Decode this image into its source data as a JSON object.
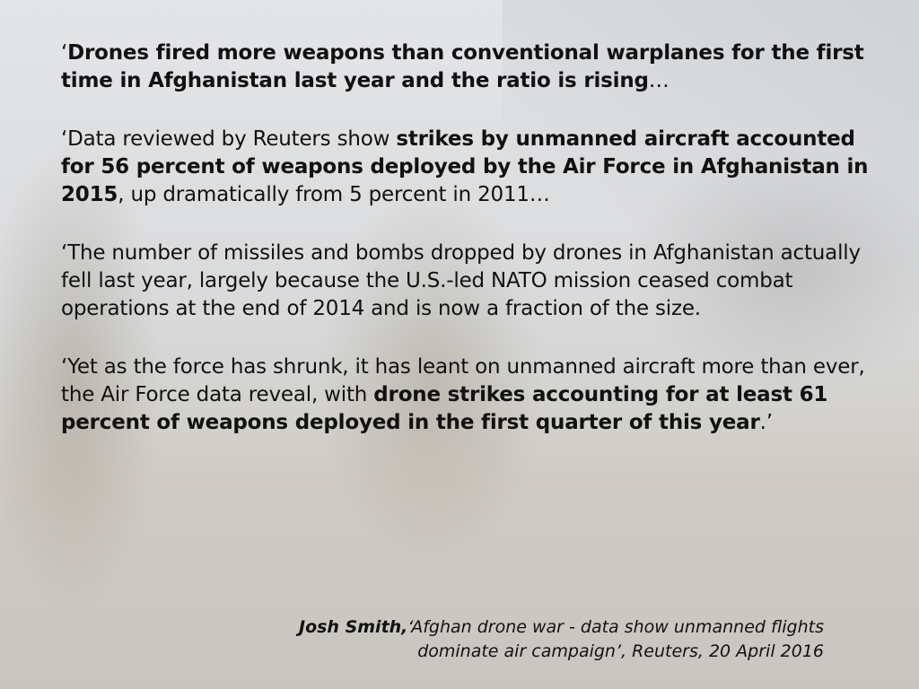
{
  "paragraphs": [
    [
      {
        "t": "‘",
        "b": false
      },
      {
        "t": "Drones fired more weapons than conventional warplanes for the first time in Afghanistan last year and the ratio is rising",
        "b": true
      },
      {
        "t": "…",
        "b": false
      }
    ],
    [
      {
        "t": "‘Data reviewed by Reuters show ",
        "b": false
      },
      {
        "t": "strikes by unmanned aircraft accounted for 56 percent of weapons deployed by the Air Force in Afghanistan in 2015",
        "b": true
      },
      {
        "t": ", up dramatically from 5 percent in 2011…",
        "b": false
      }
    ],
    [
      {
        "t": "‘The number of missiles and bombs dropped by drones in Afghanistan actually fell last year, largely because the U.S.-led NATO mission ceased combat operations at the end of 2014 and is now a fraction of the size.",
        "b": false
      }
    ],
    [
      {
        "t": "‘Yet as the force has shrunk, it has leant on unmanned aircraft more than ever, the Air Force data reveal, with ",
        "b": false
      },
      {
        "t": "drone strikes accounting for at least 61 percent of weapons deployed in the first quarter of this year",
        "b": true
      },
      {
        "t": ".’",
        "b": false
      }
    ]
  ],
  "citation": {
    "author": "Josh Smith,",
    "line1": "‘Afghan drone war - data show unmanned flights",
    "line2": "dominate air campaign’, Reuters, 20 April 2016"
  }
}
